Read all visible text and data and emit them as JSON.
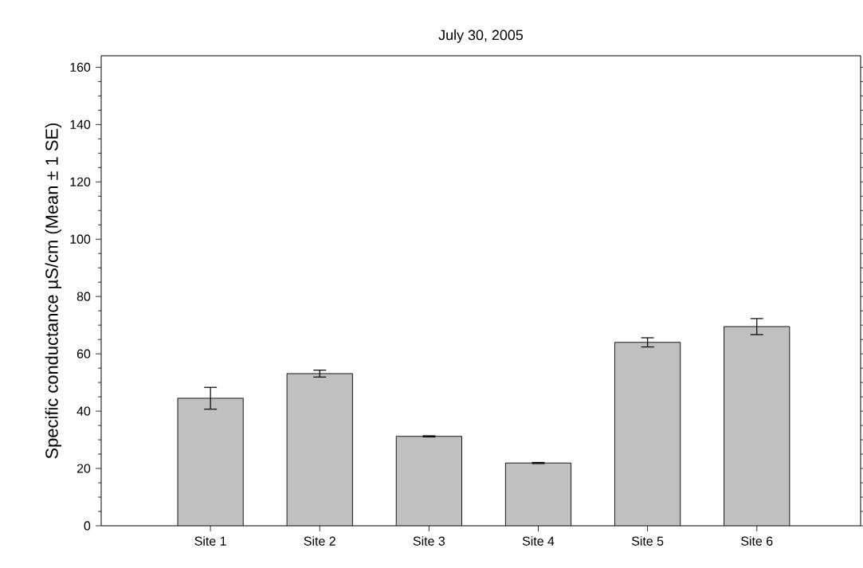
{
  "chart_data": {
    "type": "bar",
    "title": "July 30, 2005",
    "ylabel": "Specific conductance  µS/cm  (Mean ± 1 SE)",
    "categories": [
      "Site 1",
      "Site 2",
      "Site 3",
      "Site 4",
      "Site 5",
      "Site 6"
    ],
    "values": [
      44.5,
      53.1,
      31.2,
      21.9,
      64.0,
      69.5
    ],
    "errors": [
      3.8,
      1.2,
      0.2,
      0.2,
      1.6,
      2.8
    ],
    "color": "#c0c0c0",
    "ylim": [
      0,
      164
    ],
    "yticks": [
      0,
      20,
      40,
      60,
      80,
      100,
      120,
      140,
      160
    ]
  }
}
